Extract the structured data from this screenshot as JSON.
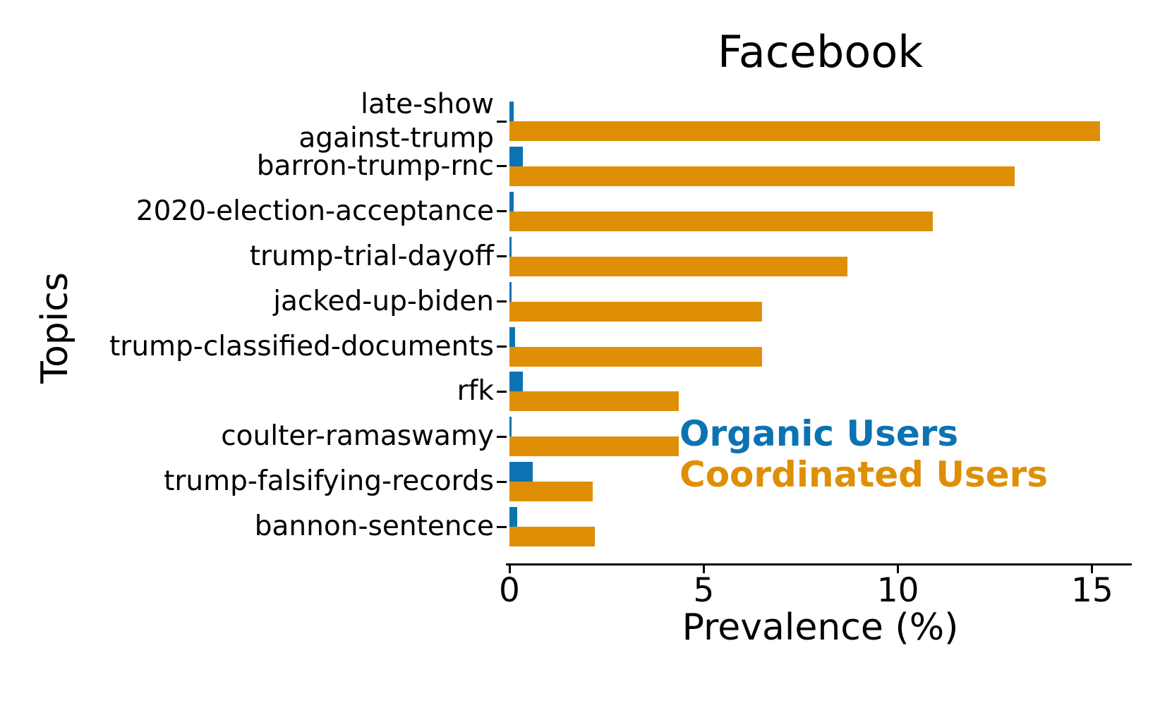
{
  "chart_data": {
    "type": "bar",
    "orientation": "horizontal",
    "title": "Facebook",
    "xlabel": "Prevalence (%)",
    "ylabel": "Topics",
    "xlim": [
      0,
      16
    ],
    "xticks": [
      0,
      5,
      10,
      15
    ],
    "grid": false,
    "legend_position": "inside-middle-right",
    "categories": [
      "late-show\nagainst-trump",
      "barron-trump-rnc",
      "2020-election-acceptance",
      "trump-trial-dayoff",
      "jacked-up-biden",
      "trump-classified-documents",
      "rfk",
      "coulter-ramaswamy",
      "trump-falsifying-records",
      "bannon-sentence"
    ],
    "series": [
      {
        "name": "Organic Users",
        "color": "#0b73b2",
        "values": [
          0.1,
          0.35,
          0.1,
          0.05,
          0.05,
          0.15,
          0.35,
          0.05,
          0.6,
          0.2
        ]
      },
      {
        "name": "Coordinated Users",
        "color": "#de8f05",
        "values": [
          15.2,
          13.0,
          10.9,
          8.7,
          6.5,
          6.5,
          4.35,
          4.35,
          2.15,
          2.2
        ]
      }
    ]
  }
}
